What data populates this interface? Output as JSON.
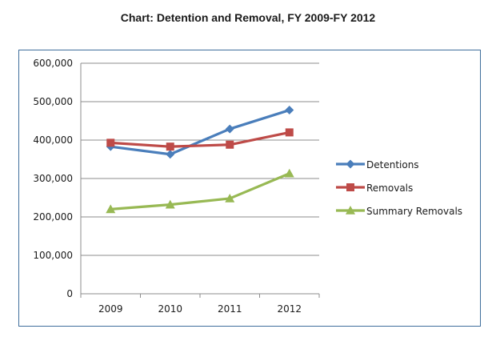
{
  "page": {
    "title": "Chart: Detention and Removal, FY 2009-FY 2012"
  },
  "chart_data": {
    "type": "line",
    "title": "Chart: Detention and Removal, FY 2009-FY 2012",
    "xlabel": "",
    "ylabel": "",
    "categories": [
      "2009",
      "2010",
      "2011",
      "2012"
    ],
    "ylim": [
      0,
      600000
    ],
    "yticks": [
      0,
      100000,
      200000,
      300000,
      400000,
      500000,
      600000
    ],
    "ytick_labels": [
      "0",
      "100,000",
      "200,000",
      "300,000",
      "400,000",
      "500,000",
      "600,000"
    ],
    "grid": "horizontal",
    "legend_position": "right",
    "series": [
      {
        "name": "Detentions",
        "color": "#4a7ebb",
        "marker": "diamond",
        "values": [
          383000,
          363000,
          429000,
          478000
        ]
      },
      {
        "name": "Removals",
        "color": "#be4b48",
        "marker": "square",
        "values": [
          393000,
          383000,
          388000,
          420000
        ]
      },
      {
        "name": "Summary Removals",
        "color": "#98b954",
        "marker": "triangle",
        "values": [
          220000,
          232000,
          248000,
          313000
        ]
      }
    ]
  }
}
